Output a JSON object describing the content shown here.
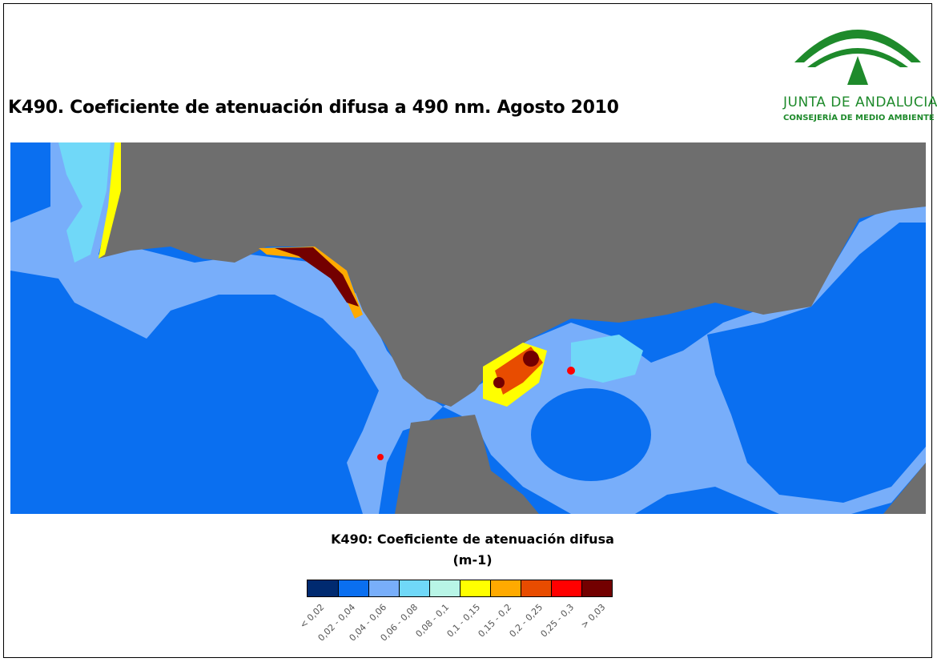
{
  "title": "K490. Coeficiente de atenuación difusa a 490 nm. Agosto 2010",
  "logo": {
    "name": "JUNTA DE ANDALUCIA",
    "sub": "CONSEJERÍA DE MEDIO AMBIENTE",
    "color": "#1e8a2b"
  },
  "map": {
    "land_color": "#6e6e6e",
    "region": "Golfo de Cádiz, Estrecho de Gibraltar y Mar de Alborán"
  },
  "legend": {
    "title": "K490: Coeficiente de atenuación difusa",
    "unit": "(m-1)",
    "classes": [
      {
        "label": "< 0,02",
        "color": "#002a70"
      },
      {
        "label": "0,02 - 0,04",
        "color": "#0a6ff0"
      },
      {
        "label": "0,04 - 0,06",
        "color": "#78aefa"
      },
      {
        "label": "0,06 - 0,08",
        "color": "#70d8f8"
      },
      {
        "label": "0,08 - 0,1",
        "color": "#b8f5e6"
      },
      {
        "label": "0,1 - 0,15",
        "color": "#ffff00"
      },
      {
        "label": "0,15 - 0,2",
        "color": "#ffaa00"
      },
      {
        "label": "0,2 - 0,25",
        "color": "#e84c00"
      },
      {
        "label": "0,25 - 0,3",
        "color": "#ff0000"
      },
      {
        "label": "> 0,03",
        "color": "#730000"
      }
    ]
  }
}
